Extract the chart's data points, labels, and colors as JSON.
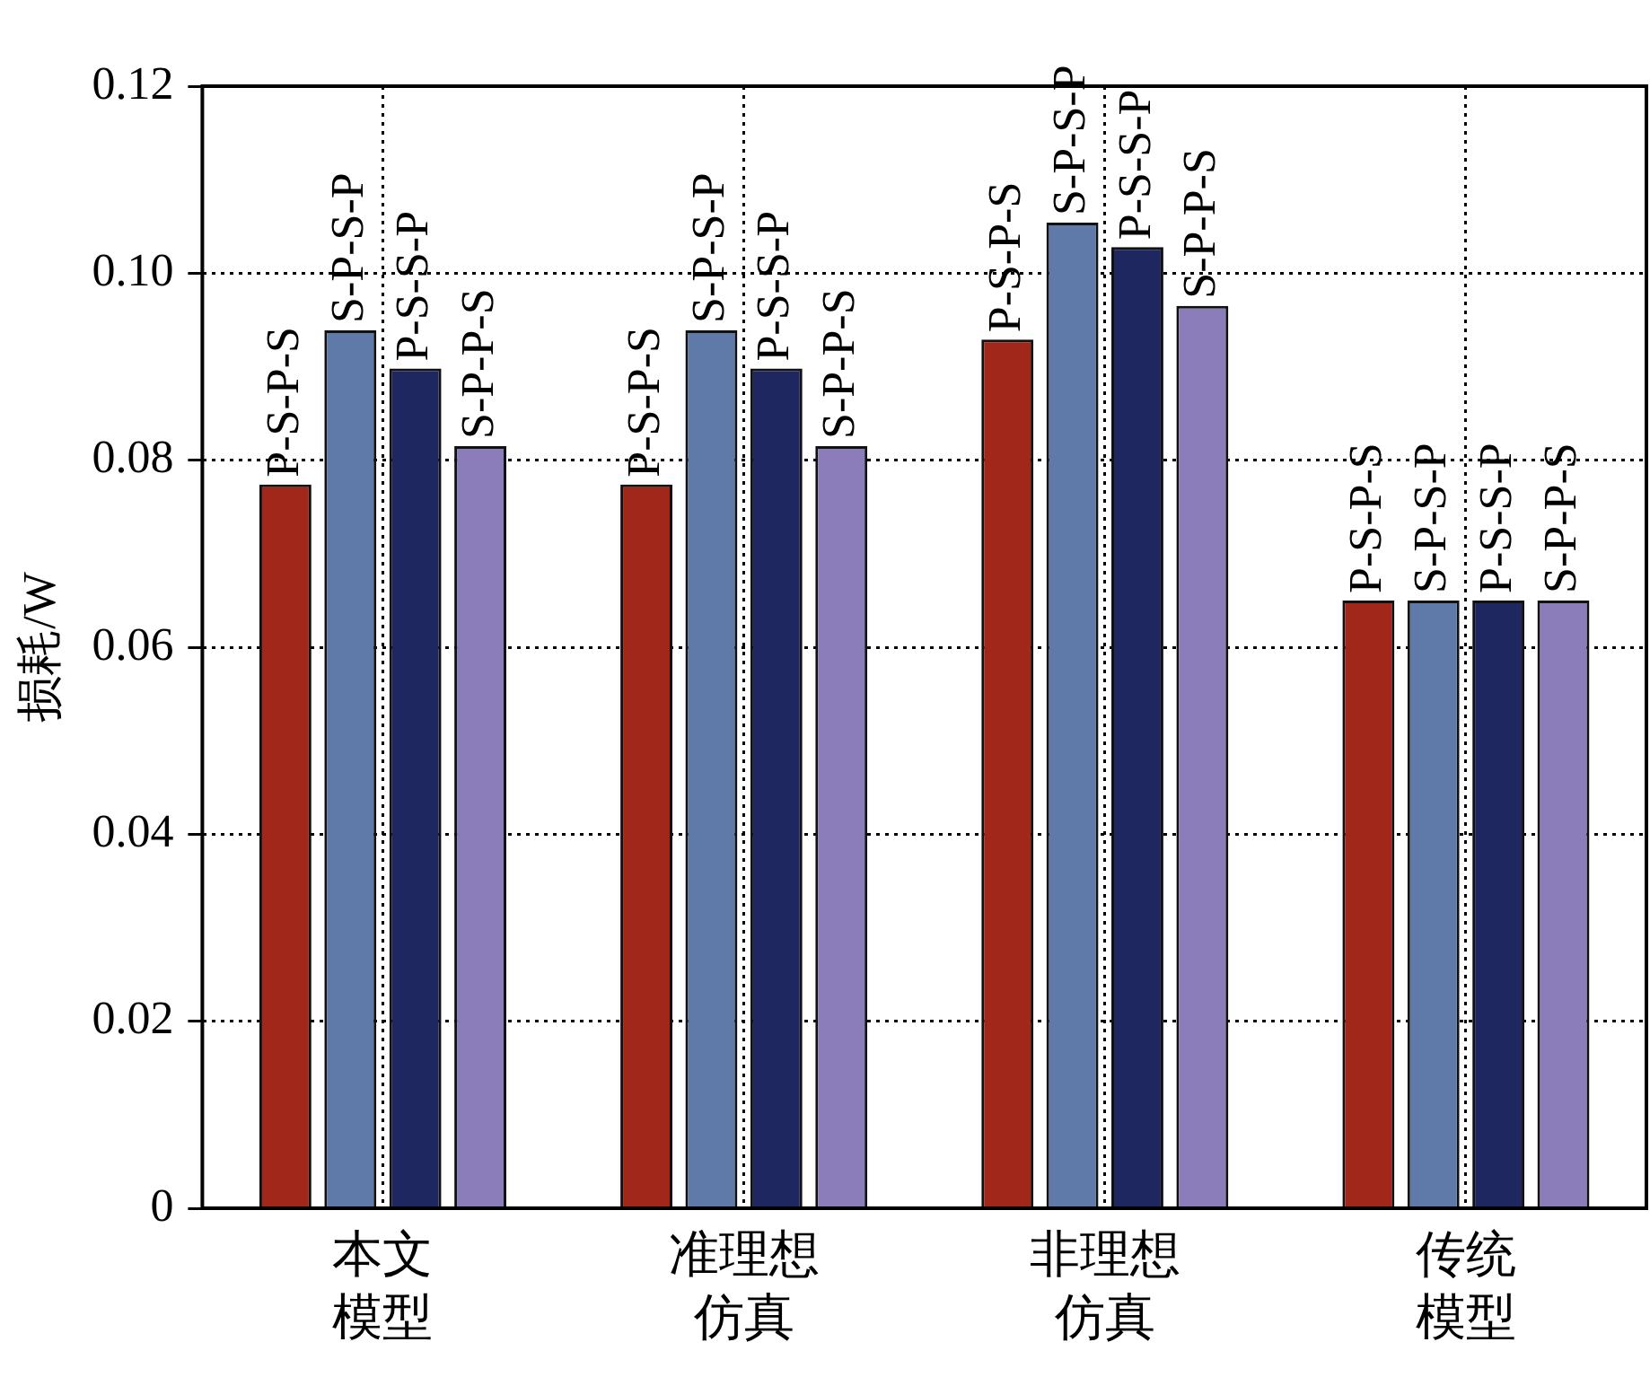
{
  "chart_data": {
    "type": "bar",
    "ylabel": "损耗/W",
    "categories": [
      "本文模型",
      "准理想仿真",
      "非理想仿真",
      "传统模型"
    ],
    "series": [
      {
        "name": "P-S-P-S",
        "color": "#a0271a",
        "values": [
          0.0774,
          0.0774,
          0.0929,
          0.065
        ]
      },
      {
        "name": "S-P-S-P",
        "color": "#5f79a9",
        "values": [
          0.0939,
          0.0939,
          0.1054,
          0.065
        ]
      },
      {
        "name": "P-S-S-P",
        "color": "#1e275f",
        "values": [
          0.0898,
          0.0898,
          0.1028,
          0.065
        ]
      },
      {
        "name": "S-P-P-S",
        "color": "#8a7dba",
        "values": [
          0.0815,
          0.0815,
          0.0965,
          0.065
        ]
      }
    ],
    "ylim": [
      0,
      0.12
    ],
    "yticks": [
      0,
      0.02,
      0.04,
      0.06,
      0.08,
      {
        "value": 0.1,
        "label": "0.10"
      },
      0.12
    ],
    "grid": true,
    "legend": false
  }
}
